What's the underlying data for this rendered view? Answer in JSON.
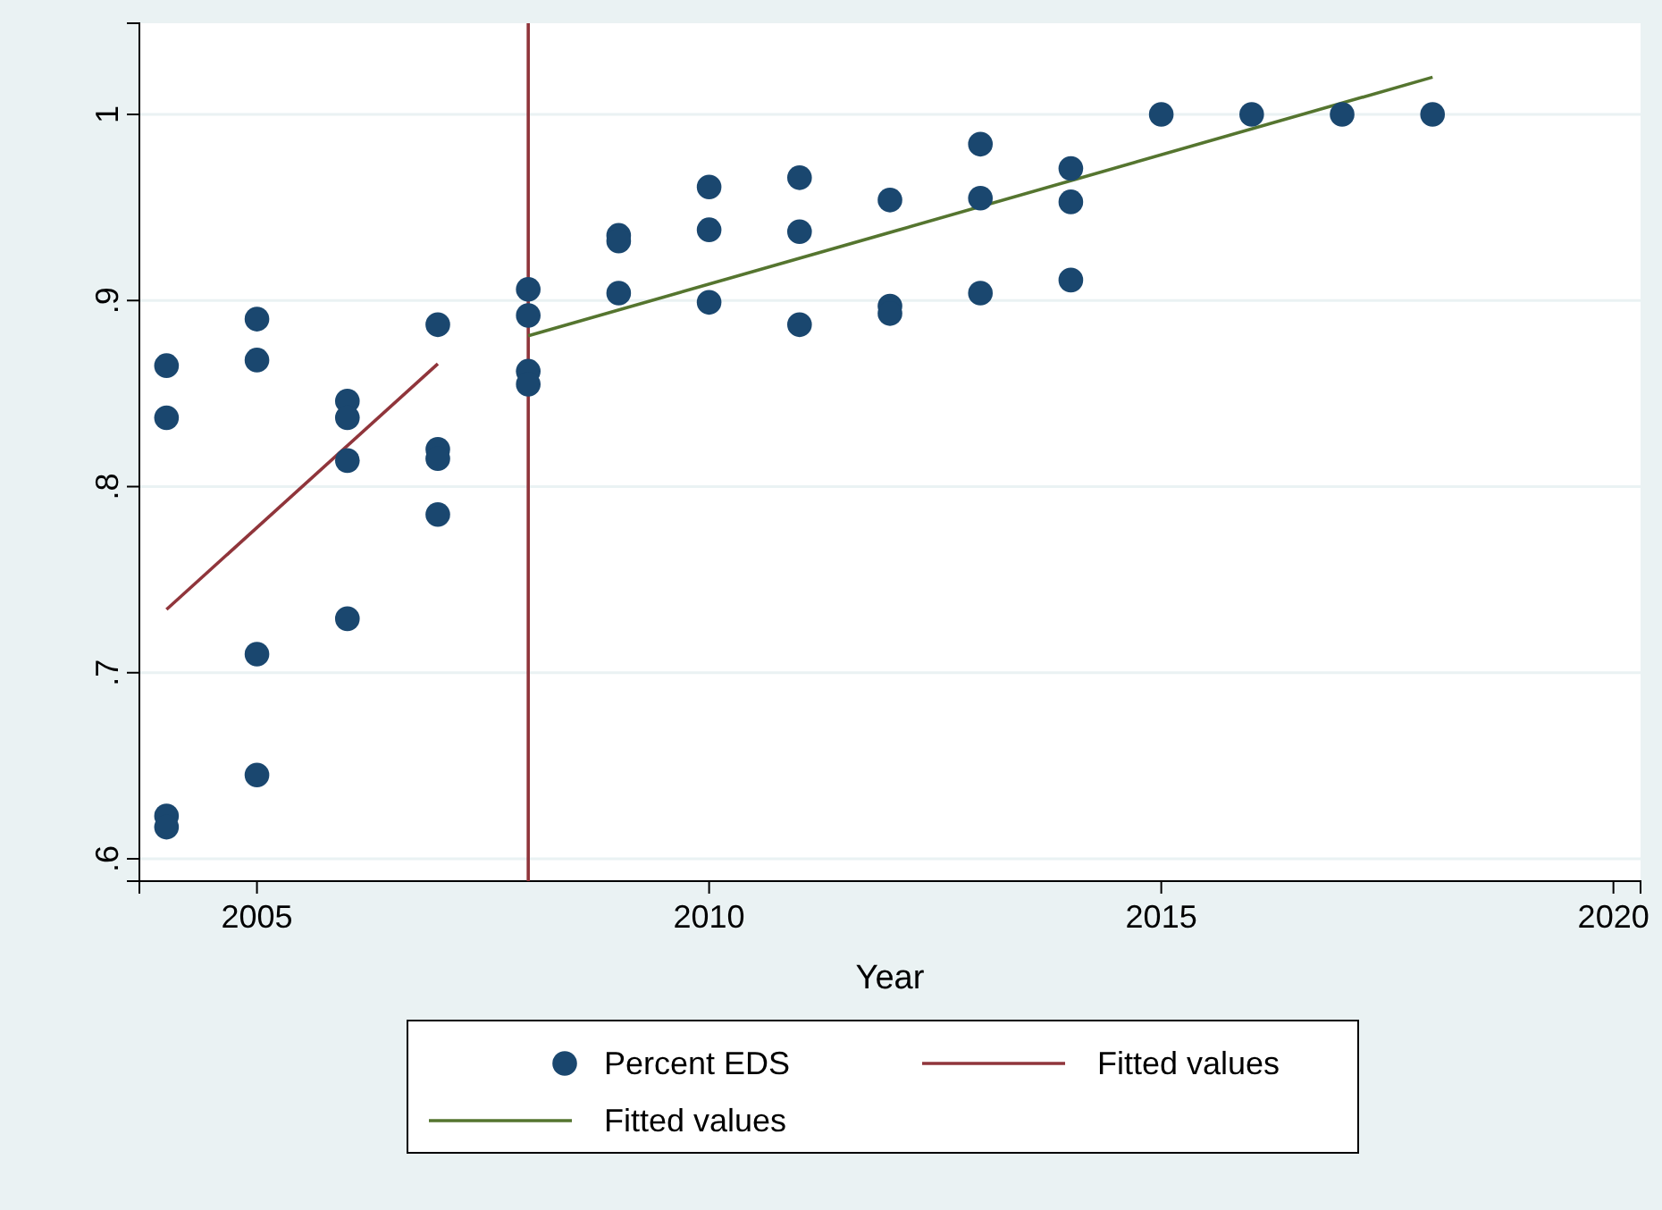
{
  "chart_data": {
    "type": "scatter",
    "xlabel": "Year",
    "xlim": [
      2003.7,
      2020.3
    ],
    "ylim": [
      0.588,
      1.049
    ],
    "xticks": [
      2005,
      2010,
      2015,
      2020
    ],
    "yticks": [
      {
        "value": 0.6,
        "label": ".6"
      },
      {
        "value": 0.7,
        "label": ".7"
      },
      {
        "value": 0.8,
        "label": ".8"
      },
      {
        "value": 0.9,
        "label": ".9"
      },
      {
        "value": 1,
        "label": "1"
      }
    ],
    "grid": "y",
    "legend": "bottom",
    "series": [
      {
        "name": "Percent EDS",
        "marker": "circle",
        "color": "#1a476f",
        "x": [
          2004,
          2004,
          2004,
          2004,
          2005,
          2005,
          2005,
          2005,
          2006,
          2006,
          2006,
          2006,
          2007,
          2007,
          2007,
          2007,
          2008,
          2008,
          2008,
          2008,
          2009,
          2009,
          2009,
          2010,
          2010,
          2010,
          2011,
          2011,
          2011,
          2012,
          2012,
          2012,
          2013,
          2013,
          2013,
          2014,
          2014,
          2014,
          2015,
          2016,
          2017,
          2018
        ],
        "values": [
          0.865,
          0.837,
          0.623,
          0.617,
          0.89,
          0.868,
          0.71,
          0.645,
          0.846,
          0.837,
          0.814,
          0.729,
          0.887,
          0.82,
          0.815,
          0.785,
          0.906,
          0.892,
          0.862,
          0.855,
          0.935,
          0.932,
          0.904,
          0.961,
          0.938,
          0.899,
          0.966,
          0.937,
          0.887,
          0.954,
          0.897,
          0.893,
          0.984,
          0.955,
          0.904,
          0.971,
          0.953,
          0.911,
          1,
          1,
          1,
          1
        ]
      },
      {
        "name": "Fitted values",
        "type": "line",
        "marker": "none",
        "color": "#90353b",
        "x": [
          2004,
          2007
        ],
        "values": [
          0.734,
          0.866
        ]
      },
      {
        "name": "Fitted values",
        "type": "line",
        "marker": "none",
        "color": "#55752f",
        "x": [
          2008,
          2018
        ],
        "values": [
          0.881,
          1.02
        ]
      }
    ],
    "ref_lines": [
      {
        "axis": "x",
        "value": 2008,
        "color": "#90353b"
      }
    ]
  }
}
